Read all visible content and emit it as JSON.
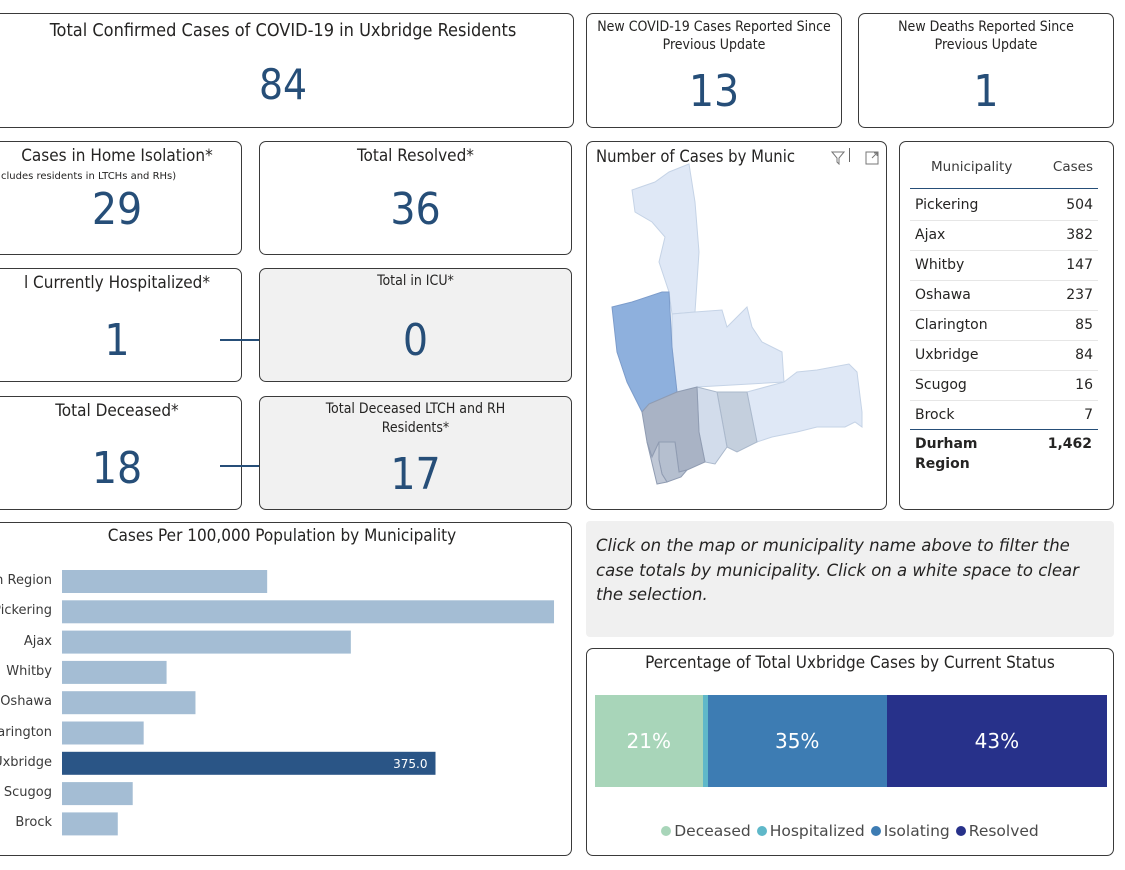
{
  "kpis": {
    "total_confirmed": {
      "title": "Total Confirmed Cases of COVID-19 in Uxbridge Residents",
      "value": "84"
    },
    "new_cases": {
      "title": "New COVID-19 Cases Reported Since Previous Update",
      "value": "13"
    },
    "new_deaths": {
      "title": "New Deaths Reported Since Previous Update",
      "value": "1"
    },
    "home_isolation": {
      "title": "Cases in Home Isolation*",
      "subtitle": "cludes residents in LTCHs and RHs)",
      "value": "29"
    },
    "total_resolved": {
      "title": "Total Resolved*",
      "value": "36"
    },
    "hospitalized": {
      "title": "l Currently Hospitalized*",
      "value": "1"
    },
    "icu": {
      "title": "Total in ICU*",
      "value": "0"
    },
    "deceased": {
      "title": "Total Deceased*",
      "value": "18"
    },
    "deceased_ltch": {
      "title": "Total Deceased LTCH and RH Residents*",
      "value": "17"
    }
  },
  "map": {
    "title": "Number of Cases by Munic",
    "icons": [
      "filter-icon",
      "focus-mode-icon"
    ]
  },
  "table": {
    "headers": [
      "Municipality",
      "Cases"
    ],
    "rows": [
      {
        "name": "Pickering",
        "cases": "504"
      },
      {
        "name": "Ajax",
        "cases": "382"
      },
      {
        "name": "Whitby",
        "cases": "147"
      },
      {
        "name": "Oshawa",
        "cases": "237"
      },
      {
        "name": "Clarington",
        "cases": "85"
      },
      {
        "name": "Uxbridge",
        "cases": "84"
      },
      {
        "name": "Scugog",
        "cases": "16"
      },
      {
        "name": "Brock",
        "cases": "7"
      }
    ],
    "total": {
      "name": "Durham Region",
      "cases": "1,462"
    }
  },
  "note": "Click on the map or municipality name above to filter the case totals by municipality. Click on a white space to clear the selection.",
  "colors": {
    "bar_default": "#a4bdd4",
    "bar_selected": "#2a5586",
    "value_blue": "#264e78",
    "deceased": "#a8d5b9",
    "hospitalized": "#5fb8c9",
    "isolating": "#3d7cb3",
    "resolved": "#27318a"
  },
  "chart_data": [
    {
      "type": "bar",
      "title": "Cases Per 100,000 Population by Municipality",
      "orientation": "horizontal",
      "categories": [
        "n Region",
        "Pickering",
        "Ajax",
        "Whitby",
        "Oshawa",
        "arington",
        "Uxbridge",
        "Scugog",
        "Brock"
      ],
      "values": [
        206,
        494,
        290,
        105,
        134,
        82,
        375.0,
        71,
        56
      ],
      "selected": "Uxbridge",
      "data_labels": {
        "Uxbridge": "375.0"
      },
      "xlim": [
        0,
        500
      ]
    },
    {
      "type": "bar",
      "stacked": true,
      "title": "Percentage of Total Uxbridge Cases by Current Status",
      "series": [
        {
          "name": "Deceased",
          "value": 21,
          "label": "21%"
        },
        {
          "name": "Hospitalized",
          "value": 1,
          "label": ""
        },
        {
          "name": "Isolating",
          "value": 35,
          "label": "35%"
        },
        {
          "name": "Resolved",
          "value": 43,
          "label": "43%"
        }
      ],
      "legend": "bottom"
    }
  ]
}
